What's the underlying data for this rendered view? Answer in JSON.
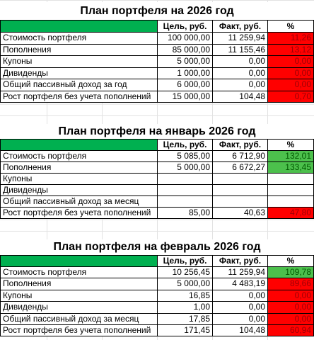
{
  "tables": [
    {
      "title": "План портфеля на 2026 год",
      "header": [
        "Цель, руб.",
        "Факт, руб.",
        "%"
      ],
      "rows": [
        {
          "label": "Стоимость портфеля",
          "goal": "100 000,00",
          "fact": "11 259,94",
          "pct": "11,26",
          "status": "red"
        },
        {
          "label": "Пополнения",
          "goal": "85 000,00",
          "fact": "11 155,46",
          "pct": "13,12",
          "status": "red"
        },
        {
          "label": "Купоны",
          "goal": "5 000,00",
          "fact": "0,00",
          "pct": "0,00",
          "status": "red"
        },
        {
          "label": "Дивиденды",
          "goal": "1 000,00",
          "fact": "0,00",
          "pct": "0,00",
          "status": "red"
        },
        {
          "label": "Общий пассивный доход за год",
          "goal": "6 000,00",
          "fact": "0,00",
          "pct": "0,00",
          "status": "red"
        },
        {
          "label": "Рост портфеля без учета пополнений",
          "goal": "15 000,00",
          "fact": "104,48",
          "pct": "0,70",
          "status": "red"
        }
      ]
    },
    {
      "title": "План портфеля на январь 2026 год",
      "header": [
        "Цель, руб.",
        "Факт, руб.",
        "%"
      ],
      "rows": [
        {
          "label": "Стоимость портфеля",
          "goal": "5 085,00",
          "fact": "6 712,90",
          "pct": "132,01",
          "status": "green"
        },
        {
          "label": "Пополнения",
          "goal": "5 000,00",
          "fact": "6 672,27",
          "pct": "133,45",
          "status": "green"
        },
        {
          "label": "Купоны",
          "goal": null,
          "fact": null,
          "pct": null,
          "status": null
        },
        {
          "label": "Дивиденды",
          "goal": null,
          "fact": null,
          "pct": null,
          "status": null
        },
        {
          "label": "Общий пассивный доход за месяц",
          "goal": null,
          "fact": null,
          "pct": null,
          "status": null
        },
        {
          "label": "Рост портфеля без учета пополнений",
          "goal": "85,00",
          "fact": "40,63",
          "pct": "47,80",
          "status": "red"
        }
      ]
    },
    {
      "title": "План портфеля на февраль 2026 год",
      "header": [
        "Цель, руб.",
        "Факт, руб.",
        "%"
      ],
      "rows": [
        {
          "label": "Стоимость портфеля",
          "goal": "10 256,45",
          "fact": "11 259,94",
          "pct": "109,78",
          "status": "green"
        },
        {
          "label": "Пополнения",
          "goal": "5 000,00",
          "fact": "4 483,19",
          "pct": "89,66",
          "status": "red"
        },
        {
          "label": "Купоны",
          "goal": "16,85",
          "fact": "0,00",
          "pct": "0,00",
          "status": "red"
        },
        {
          "label": "Дивиденды",
          "goal": "1,00",
          "fact": "0,00",
          "pct": "0,00",
          "status": "red"
        },
        {
          "label": "Общий пассивный доход за месяц",
          "goal": "17,85",
          "fact": "0,00",
          "pct": "0,00",
          "status": "red"
        },
        {
          "label": "Рост портфеля без учета пополнений",
          "goal": "171,45",
          "fact": "104,48",
          "pct": "60,94",
          "status": "red"
        }
      ]
    }
  ]
}
